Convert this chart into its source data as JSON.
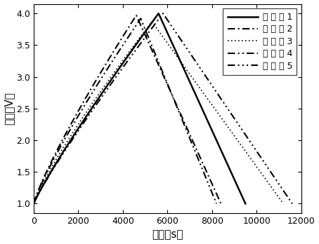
{
  "xlabel": "时间（s）",
  "ylabel": "电压（V）",
  "xlim": [
    0,
    12000
  ],
  "ylim": [
    0.85,
    4.15
  ],
  "xticks": [
    0,
    2000,
    4000,
    6000,
    8000,
    10000,
    12000
  ],
  "yticks": [
    1.0,
    1.5,
    2.0,
    2.5,
    3.0,
    3.5,
    4.0
  ],
  "legend_labels": [
    "实施例1",
    "实施例2",
    "实施例3",
    "实施例4",
    "实施例5"
  ],
  "line_widths": [
    1.8,
    1.5,
    1.2,
    1.5,
    1.5
  ],
  "curves": [
    {
      "t_start": 0,
      "t_peak": 5600,
      "v_start": 1.0,
      "v_peak": 4.0,
      "t_end": 9500,
      "v_end": 1.0,
      "charge_exp": 0.9,
      "discharge_exp": 1.0
    },
    {
      "t_start": 0,
      "t_peak": 4600,
      "v_start": 1.0,
      "v_peak": 3.97,
      "t_end": 8400,
      "v_end": 1.0,
      "charge_exp": 0.85,
      "discharge_exp": 1.0
    },
    {
      "t_start": 0,
      "t_peak": 5300,
      "v_start": 1.0,
      "v_peak": 3.87,
      "t_end": 11200,
      "v_end": 1.0,
      "charge_exp": 0.85,
      "discharge_exp": 1.0
    },
    {
      "t_start": 0,
      "t_peak": 4800,
      "v_start": 1.0,
      "v_peak": 3.92,
      "t_end": 8200,
      "v_end": 1.0,
      "charge_exp": 0.85,
      "discharge_exp": 1.0
    },
    {
      "t_start": 0,
      "t_peak": 5800,
      "v_start": 1.0,
      "v_peak": 4.0,
      "t_end": 11600,
      "v_end": 1.0,
      "charge_exp": 0.9,
      "discharge_exp": 1.0
    }
  ]
}
